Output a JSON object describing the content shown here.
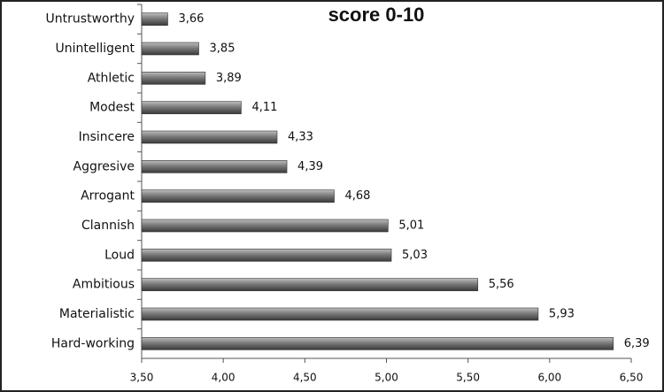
{
  "chart_data": {
    "type": "bar",
    "orientation": "horizontal",
    "title": "score 0-10",
    "categories": [
      "Untrustworthy",
      "Unintelligent",
      "Athletic",
      "Modest",
      "Insincere",
      "Aggresive",
      "Arrogant",
      "Clannish",
      "Loud",
      "Ambitious",
      "Materialistic",
      "Hard-working"
    ],
    "values": [
      3.66,
      3.85,
      3.89,
      4.11,
      4.33,
      4.39,
      4.68,
      5.01,
      5.03,
      5.56,
      5.93,
      6.39
    ],
    "value_labels": [
      "3,66",
      "3,85",
      "3,89",
      "4,11",
      "4,33",
      "4,39",
      "4,68",
      "5,01",
      "5,03",
      "5,56",
      "5,93",
      "6,39"
    ],
    "color": "#6e6e6e",
    "xlim": [
      3.5,
      6.5
    ],
    "xticks": [
      {
        "value": 3.5,
        "label": "3,50"
      },
      {
        "value": 4.0,
        "label": "4,00"
      },
      {
        "value": 4.5,
        "label": "4,50"
      },
      {
        "value": 5.0,
        "label": "5,00"
      },
      {
        "value": 5.5,
        "label": "5,50"
      },
      {
        "value": 6.0,
        "label": "6,00"
      },
      {
        "value": 6.5,
        "label": "6,50"
      }
    ]
  }
}
